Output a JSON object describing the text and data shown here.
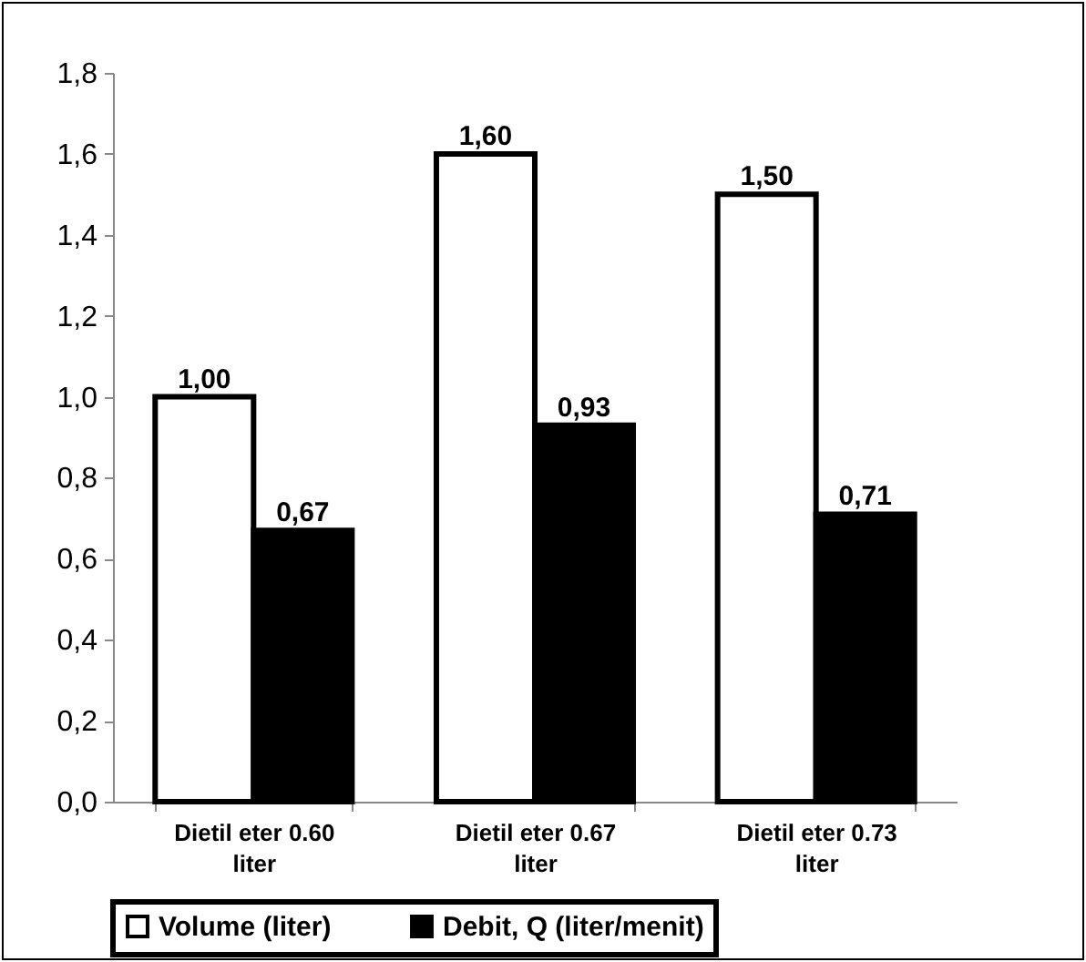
{
  "chart_data": {
    "type": "bar",
    "categories": [
      "Dietil eter 0.60 liter",
      "Dietil eter 0.67 liter",
      "Dietil eter 0.73 liter"
    ],
    "series": [
      {
        "name": "Volume (liter)",
        "color": "#ffffff",
        "values": [
          1.0,
          1.6,
          1.5
        ],
        "value_labels": [
          "1,00",
          "1,60",
          "1,50"
        ]
      },
      {
        "name": "Debit, Q (liter/menit)",
        "color": "#000000",
        "values": [
          0.67,
          0.93,
          0.71
        ],
        "value_labels": [
          "0,67",
          "0,93",
          "0,71"
        ]
      }
    ],
    "ylim": [
      0,
      1.8
    ],
    "yticks": [
      {
        "value": 0,
        "label": "0,0"
      },
      {
        "value": 0.2,
        "label": "0,2"
      },
      {
        "value": 0.4,
        "label": "0,4"
      },
      {
        "value": 0.6,
        "label": "0,6"
      },
      {
        "value": 0.8,
        "label": "0,8"
      },
      {
        "value": 1.0,
        "label": "1,0"
      },
      {
        "value": 1.2,
        "label": "1,2"
      },
      {
        "value": 1.4,
        "label": "1,4"
      },
      {
        "value": 1.6,
        "label": "1,6"
      },
      {
        "value": 1.8,
        "label": "1,8"
      }
    ],
    "grid": false,
    "legend": "bottom"
  }
}
